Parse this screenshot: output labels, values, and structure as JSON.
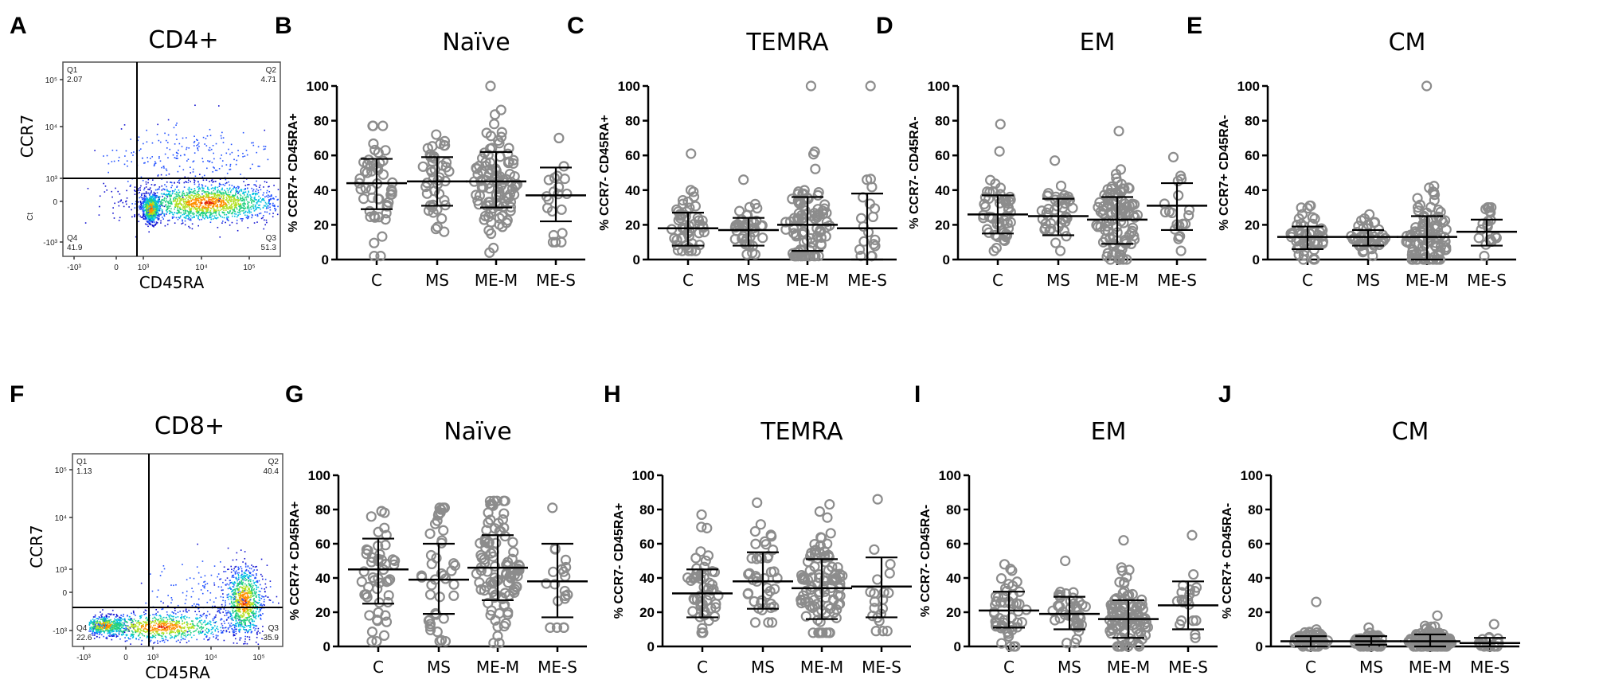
{
  "colors": {
    "points": "#8c8c8c",
    "bars": "#000000"
  },
  "chart_data": [
    {
      "type": "flow-cytometry",
      "letter": "A",
      "title": "CD4+",
      "xlabel": "CD45RA",
      "ylabel": "CCR7",
      "ylabel_small": "Ct",
      "x_ticks": [
        "-10³",
        "0",
        "10³",
        "10⁴",
        "10⁵"
      ],
      "y_ticks": [
        "10⁵",
        "10⁴",
        "10³",
        "0",
        "-10³"
      ],
      "quadrants": {
        "Q1": {
          "label": "Q1",
          "value": "2.07"
        },
        "Q2": {
          "label": "Q2",
          "value": "4.71"
        },
        "Q3": {
          "label": "Q3",
          "value": "51.3"
        },
        "Q4": {
          "label": "Q4",
          "value": "41.9"
        }
      }
    },
    {
      "type": "scatter",
      "letter": "B",
      "title": "Naïve",
      "ylabel": "% CCR7+ CD45RA+",
      "ylim": [
        0,
        100
      ],
      "yticks": [
        "0",
        "20",
        "40",
        "60",
        "80",
        "100"
      ],
      "categories": [
        "C",
        "MS",
        "ME-M",
        "ME-S"
      ],
      "groups": [
        {
          "n": 50,
          "mean": 44,
          "sd_low": 29,
          "sd_high": 58,
          "min": 2,
          "max": 77
        },
        {
          "n": 42,
          "mean": 45,
          "sd_low": 31,
          "sd_high": 59,
          "min": 16,
          "max": 72
        },
        {
          "n": 100,
          "mean": 45,
          "sd_low": 30,
          "sd_high": 62,
          "min": 4,
          "max": 100
        },
        {
          "n": 20,
          "mean": 37,
          "sd_low": 22,
          "sd_high": 53,
          "min": 10,
          "max": 70
        }
      ]
    },
    {
      "type": "scatter",
      "letter": "C",
      "title": "TEMRA",
      "ylabel": "% CCR7- CD45RA+",
      "ylim": [
        0,
        100
      ],
      "yticks": [
        "0",
        "20",
        "40",
        "60",
        "80",
        "100"
      ],
      "categories": [
        "C",
        "MS",
        "ME-M",
        "ME-S"
      ],
      "groups": [
        {
          "n": 50,
          "mean": 18,
          "sd_low": 8,
          "sd_high": 27,
          "min": 5,
          "max": 61
        },
        {
          "n": 42,
          "mean": 17,
          "sd_low": 8,
          "sd_high": 24,
          "min": 3,
          "max": 46
        },
        {
          "n": 100,
          "mean": 20,
          "sd_low": 5,
          "sd_high": 36,
          "min": 2,
          "max": 100
        },
        {
          "n": 20,
          "mean": 18,
          "sd_low": 0,
          "sd_high": 38,
          "min": 2,
          "max": 100
        }
      ]
    },
    {
      "type": "scatter",
      "letter": "D",
      "title": "EM",
      "ylabel": "% CCR7- CD45RA-",
      "ylim": [
        0,
        100
      ],
      "yticks": [
        "0",
        "20",
        "40",
        "60",
        "80",
        "100"
      ],
      "categories": [
        "C",
        "MS",
        "ME-M",
        "ME-S"
      ],
      "groups": [
        {
          "n": 50,
          "mean": 26,
          "sd_low": 15,
          "sd_high": 37,
          "min": 5,
          "max": 78
        },
        {
          "n": 42,
          "mean": 25,
          "sd_low": 14,
          "sd_high": 35,
          "min": 5,
          "max": 57
        },
        {
          "n": 100,
          "mean": 23,
          "sd_low": 9,
          "sd_high": 36,
          "min": 0,
          "max": 74
        },
        {
          "n": 20,
          "mean": 31,
          "sd_low": 17,
          "sd_high": 44,
          "min": 5,
          "max": 59
        }
      ]
    },
    {
      "type": "scatter",
      "letter": "E",
      "title": "CM",
      "ylabel": "% CCR7+ CD45RA-",
      "ylim": [
        0,
        100
      ],
      "yticks": [
        "0",
        "20",
        "40",
        "60",
        "80",
        "100"
      ],
      "categories": [
        "C",
        "MS",
        "ME-M",
        "ME-S"
      ],
      "groups": [
        {
          "n": 50,
          "mean": 13,
          "sd_low": 6,
          "sd_high": 19,
          "min": 0,
          "max": 31
        },
        {
          "n": 42,
          "mean": 13,
          "sd_low": 8,
          "sd_high": 17,
          "min": 2,
          "max": 26
        },
        {
          "n": 100,
          "mean": 13,
          "sd_low": 0,
          "sd_high": 25,
          "min": 0,
          "max": 100
        },
        {
          "n": 20,
          "mean": 16,
          "sd_low": 8,
          "sd_high": 23,
          "min": 2,
          "max": 30
        }
      ]
    },
    {
      "type": "flow-cytometry",
      "letter": "F",
      "title": "CD8+",
      "xlabel": "CD45RA",
      "ylabel": "CCR7",
      "x_ticks": [
        "-10³",
        "0",
        "10³",
        "10⁴",
        "10⁵"
      ],
      "y_ticks": [
        "10⁵",
        "10⁴",
        "10³",
        "0",
        "-10³"
      ],
      "quadrants": {
        "Q1": {
          "label": "Q1",
          "value": "1.13"
        },
        "Q2": {
          "label": "Q2",
          "value": "40.4"
        },
        "Q3": {
          "label": "Q3",
          "value": "35.9"
        },
        "Q4": {
          "label": "Q4",
          "value": "22.6"
        }
      }
    },
    {
      "type": "scatter",
      "letter": "G",
      "title": "Naïve",
      "ylabel": "% CCR7+ CD45RA+",
      "ylim": [
        0,
        100
      ],
      "yticks": [
        "0",
        "20",
        "40",
        "60",
        "80",
        "100"
      ],
      "categories": [
        "C",
        "MS",
        "ME-M",
        "ME-S"
      ],
      "groups": [
        {
          "n": 50,
          "mean": 45,
          "sd_low": 25,
          "sd_high": 63,
          "min": 3,
          "max": 79
        },
        {
          "n": 42,
          "mean": 39,
          "sd_low": 19,
          "sd_high": 60,
          "min": 3,
          "max": 81
        },
        {
          "n": 100,
          "mean": 46,
          "sd_low": 27,
          "sd_high": 65,
          "min": 2,
          "max": 85
        },
        {
          "n": 20,
          "mean": 38,
          "sd_low": 17,
          "sd_high": 60,
          "min": 11,
          "max": 81
        }
      ]
    },
    {
      "type": "scatter",
      "letter": "H",
      "title": "TEMRA",
      "ylabel": "% CCR7- CD45RA+",
      "ylim": [
        0,
        100
      ],
      "yticks": [
        "0",
        "20",
        "40",
        "60",
        "80",
        "100"
      ],
      "categories": [
        "C",
        "MS",
        "ME-M",
        "ME-S"
      ],
      "groups": [
        {
          "n": 50,
          "mean": 31,
          "sd_low": 17,
          "sd_high": 45,
          "min": 8,
          "max": 77
        },
        {
          "n": 42,
          "mean": 38,
          "sd_low": 22,
          "sd_high": 55,
          "min": 14,
          "max": 84
        },
        {
          "n": 100,
          "mean": 34,
          "sd_low": 16,
          "sd_high": 51,
          "min": 8,
          "max": 83
        },
        {
          "n": 20,
          "mean": 35,
          "sd_low": 17,
          "sd_high": 52,
          "min": 9,
          "max": 86
        }
      ]
    },
    {
      "type": "scatter",
      "letter": "I",
      "title": "EM",
      "ylabel": "% CCR7- CD45RA-",
      "ylim": [
        0,
        100
      ],
      "yticks": [
        "0",
        "20",
        "40",
        "60",
        "80",
        "100"
      ],
      "categories": [
        "C",
        "MS",
        "ME-M",
        "ME-S"
      ],
      "groups": [
        {
          "n": 50,
          "mean": 21,
          "sd_low": 11,
          "sd_high": 32,
          "min": 0,
          "max": 48
        },
        {
          "n": 42,
          "mean": 19,
          "sd_low": 10,
          "sd_high": 29,
          "min": 2,
          "max": 50
        },
        {
          "n": 100,
          "mean": 16,
          "sd_low": 5,
          "sd_high": 27,
          "min": 0,
          "max": 62
        },
        {
          "n": 20,
          "mean": 24,
          "sd_low": 10,
          "sd_high": 38,
          "min": 5,
          "max": 65
        }
      ]
    },
    {
      "type": "scatter",
      "letter": "J",
      "title": "CM",
      "ylabel": "% CCR7+ CD45RA-",
      "ylim": [
        0,
        100
      ],
      "yticks": [
        "0",
        "20",
        "40",
        "60",
        "80",
        "100"
      ],
      "categories": [
        "C",
        "MS",
        "ME-M",
        "ME-S"
      ],
      "groups": [
        {
          "n": 50,
          "mean": 3,
          "sd_low": 0,
          "sd_high": 6,
          "min": 0,
          "max": 26
        },
        {
          "n": 42,
          "mean": 3,
          "sd_low": 1,
          "sd_high": 6,
          "min": 0,
          "max": 11
        },
        {
          "n": 100,
          "mean": 3,
          "sd_low": 0,
          "sd_high": 7,
          "min": 0,
          "max": 18
        },
        {
          "n": 20,
          "mean": 2,
          "sd_low": 0,
          "sd_high": 5,
          "min": 0,
          "max": 13
        }
      ]
    }
  ]
}
